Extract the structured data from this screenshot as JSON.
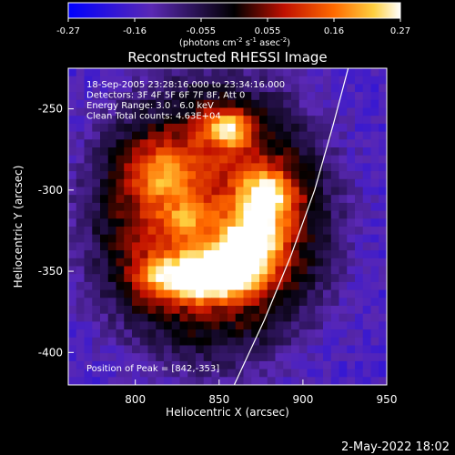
{
  "colorbar": {
    "ticks": [
      "-0.27",
      "-0.16",
      "-0.055",
      "0.055",
      "0.16",
      "0.27"
    ],
    "unit_text": "(photons cm",
    "unit_exp1": "-2",
    "unit_s": " s",
    "unit_exp2": "-1",
    "unit_asec": " asec",
    "unit_exp3": "-2",
    "unit_close": ")"
  },
  "chart_data": {
    "type": "heatmap",
    "title": "Reconstructed RHESSI Image",
    "xlabel": "Heliocentric X (arcsec)",
    "ylabel": "Heliocentric Y (arcsec)",
    "xlim": [
      760,
      950
    ],
    "ylim": [
      -420,
      -225
    ],
    "x_ticks": [
      "800",
      "850",
      "900",
      "950"
    ],
    "y_ticks": [
      "-250",
      "-300",
      "-350",
      "-400"
    ],
    "colorbar_range": [
      -0.27,
      0.27
    ],
    "colormap": [
      "#0000ff",
      "#5a28b4",
      "#000000",
      "#c01000",
      "#ff6a00",
      "#ffd040",
      "#ffffff"
    ],
    "annotations": [
      "18-Sep-2005 23:28:16.000 to 23:34:16.000",
      "Detectors: 3F 4F 5F 6F 7F 8F, Att 0",
      "Energy Range: 3.0 - 6.0 keV",
      "Clean     Total counts: 4.63E+04"
    ],
    "peak_label": "Position of Peak = [842,-353]",
    "peak": [
      842,
      -353
    ],
    "limb_curve": [
      [
        927,
        -225
      ],
      [
        918,
        -260
      ],
      [
        907,
        -300
      ],
      [
        893,
        -340
      ],
      [
        877,
        -380
      ],
      [
        859,
        -420
      ]
    ]
  },
  "footer": {
    "timestamp": "2-May-2022 18:02"
  }
}
